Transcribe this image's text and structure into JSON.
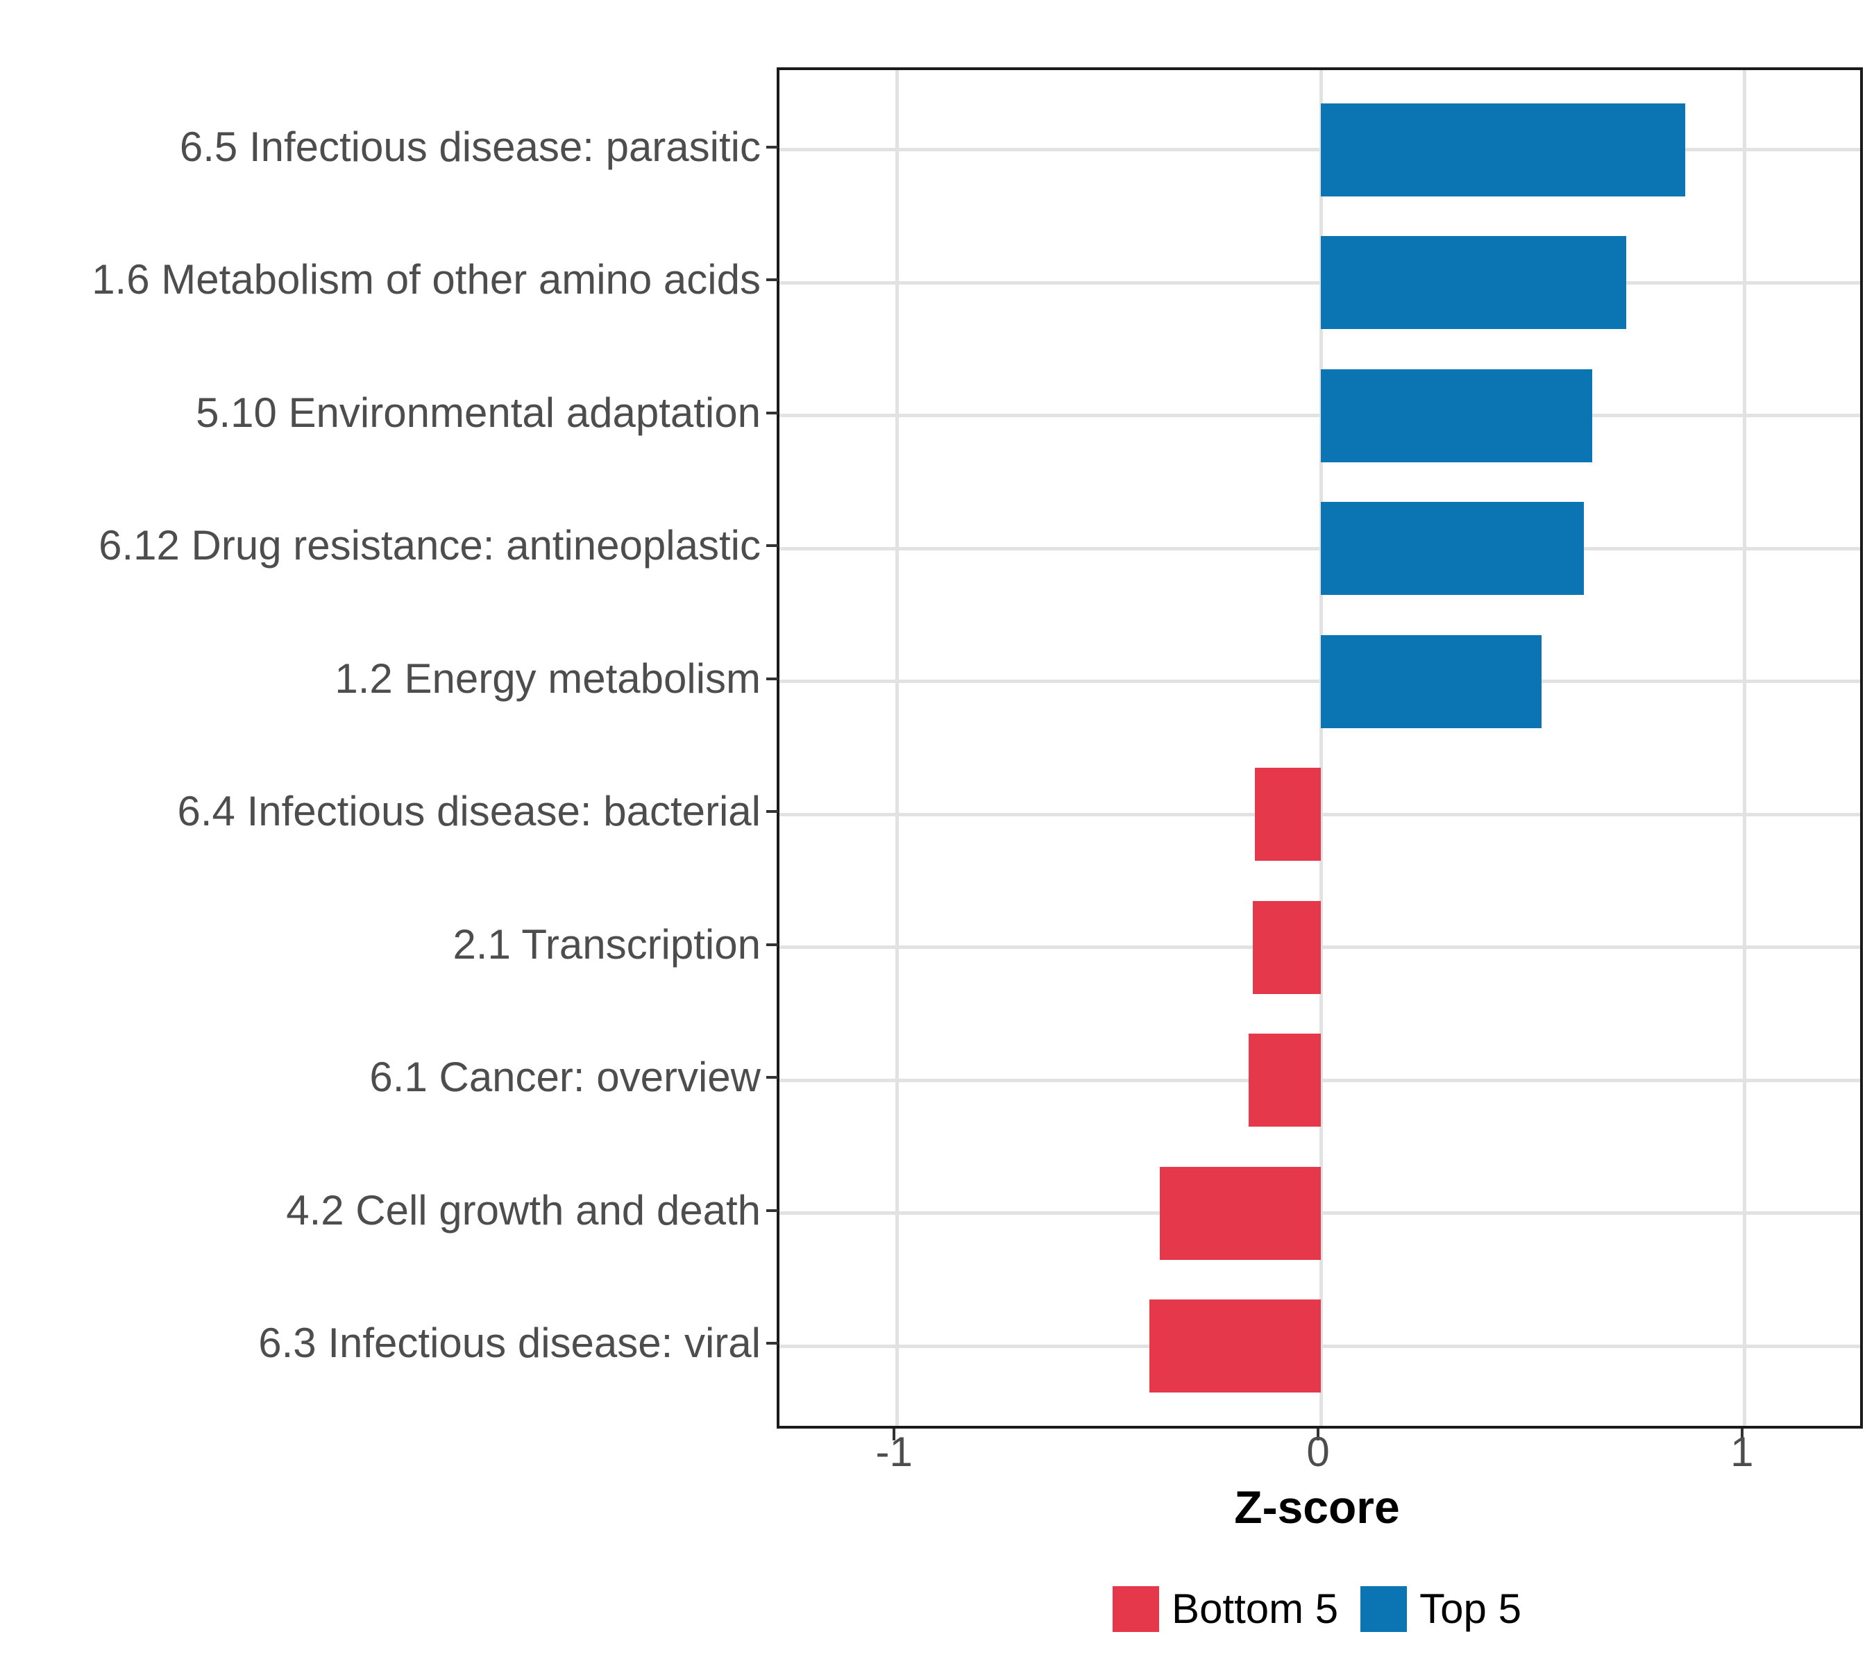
{
  "chart_data": {
    "type": "bar",
    "orientation": "horizontal",
    "title": "",
    "xlabel": "Z-score",
    "ylabel": "",
    "categories": [
      "6.5 Infectious disease: parasitic",
      "1.6 Metabolism of other amino acids",
      "5.10 Environmental adaptation",
      "6.12 Drug resistance: antineoplastic",
      "1.2 Energy metabolism",
      "6.4 Infectious disease: bacterial",
      "2.1 Transcription",
      "6.1 Cancer: overview",
      "4.2 Cell growth and death",
      "6.3 Infectious disease: viral"
    ],
    "values": [
      0.86,
      0.72,
      0.64,
      0.62,
      0.52,
      -0.155,
      -0.16,
      -0.17,
      -0.38,
      -0.405
    ],
    "groups": [
      "Top 5",
      "Top 5",
      "Top 5",
      "Top 5",
      "Top 5",
      "Bottom 5",
      "Bottom 5",
      "Bottom 5",
      "Bottom 5",
      "Bottom 5"
    ],
    "colors": {
      "Top 5": "#0B74B2",
      "Bottom 5": "#E5394B"
    },
    "xlim": [
      -1.277,
      1.272
    ],
    "x_ticks": [
      -1,
      0,
      1
    ],
    "x_tick_labels": [
      "-1",
      "0",
      "1"
    ],
    "grid": "major-only",
    "grid_color": "#e2e2e2",
    "panel_border_color": "#1a1a1a",
    "legend_position": "bottom-center",
    "legend": [
      {
        "label": "Bottom 5",
        "color": "#E5394B"
      },
      {
        "label": "Top 5",
        "color": "#0B74B2"
      }
    ]
  }
}
